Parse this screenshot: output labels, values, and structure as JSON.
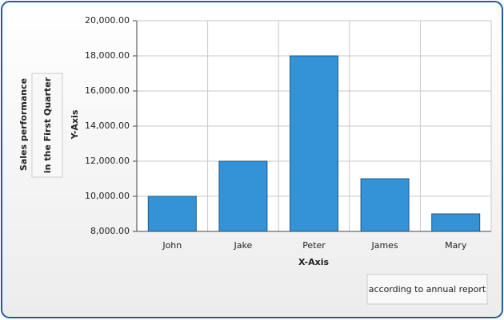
{
  "chart_data": {
    "type": "bar",
    "title": "Sales performance",
    "subtitle": "in the First Quarter",
    "y_axis_label": "Y-Axis",
    "x_axis_label": "X-Axis",
    "footer": "according to annual report",
    "categories": [
      "John",
      "Jake",
      "Peter",
      "James",
      "Mary"
    ],
    "values": [
      10000,
      12000,
      18000,
      11000,
      9000
    ],
    "color": "#3393d6",
    "ylim": [
      8000,
      20000
    ],
    "yticks": [
      {
        "value": 8000,
        "label": "8,000.00"
      },
      {
        "value": 10000,
        "label": "10,000.00"
      },
      {
        "value": 12000,
        "label": "12,000.00"
      },
      {
        "value": 14000,
        "label": "14,000.00"
      },
      {
        "value": 16000,
        "label": "16,000.00"
      },
      {
        "value": 18000,
        "label": "18,000.00"
      },
      {
        "value": 20000,
        "label": "20,000.00"
      }
    ],
    "grid": true
  }
}
